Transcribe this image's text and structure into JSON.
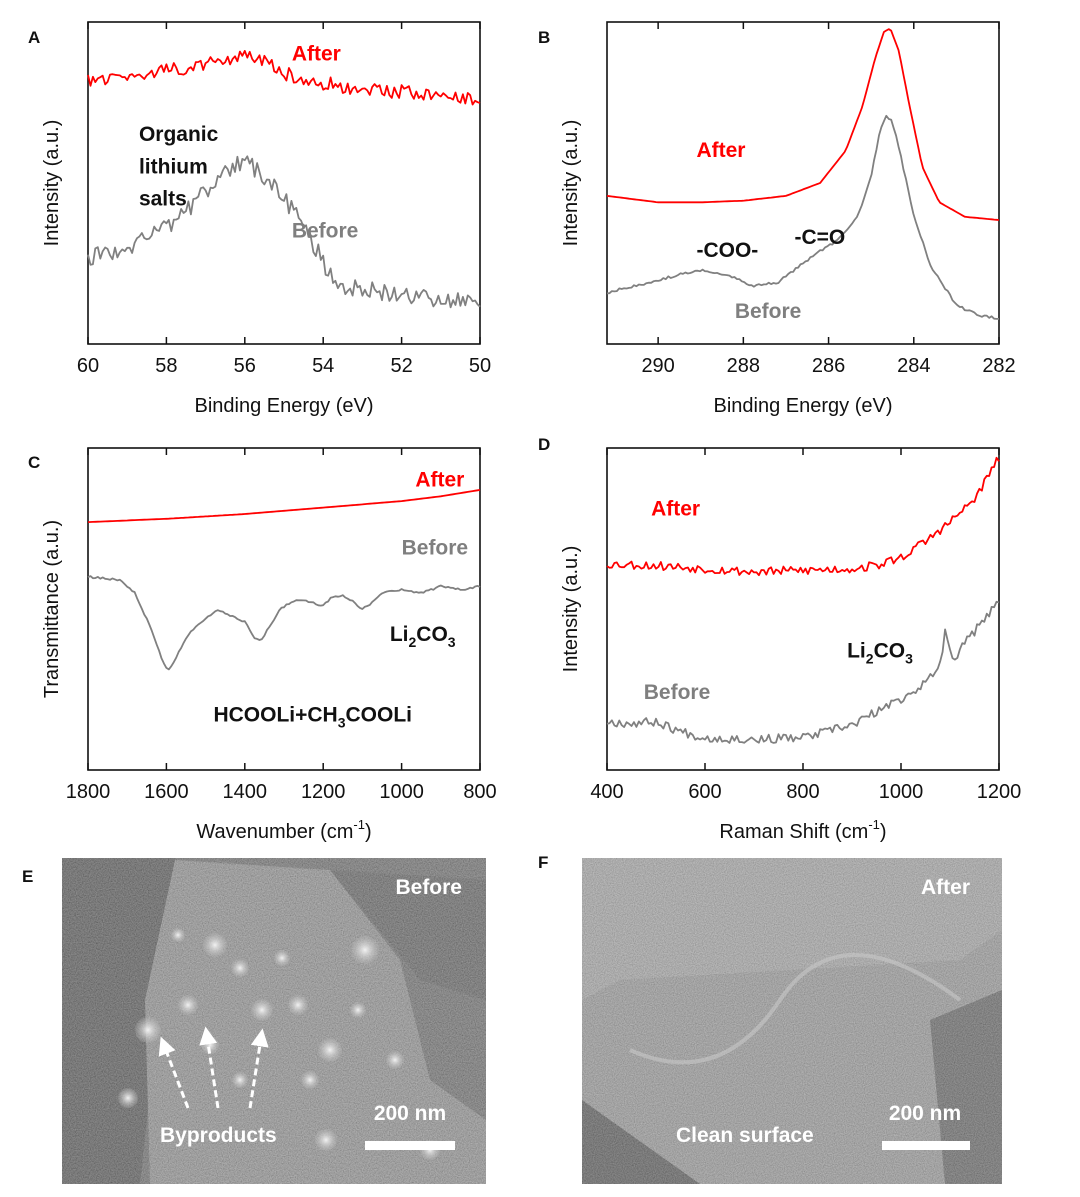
{
  "panels": {
    "A": {
      "label": "A"
    },
    "B": {
      "label": "B"
    },
    "C": {
      "label": "C"
    },
    "D": {
      "label": "D"
    },
    "E": {
      "label": "E"
    },
    "F": {
      "label": "F"
    }
  },
  "colors": {
    "after": "#ff0000",
    "before": "#808080",
    "annotation_dark": "#111111",
    "annotation_gray": "#7f7f7f"
  },
  "chart_data": [
    {
      "panel": "A",
      "type": "line",
      "xlabel": "Binding Energy (eV)",
      "ylabel": "Intensity (a.u.)",
      "xlim": [
        60,
        50
      ],
      "x_reversed": true,
      "xticks": [
        60,
        58,
        56,
        54,
        52,
        50
      ],
      "yticks": false,
      "ylim": [
        0,
        1
      ],
      "annotations": [
        {
          "text": "After",
          "color": "after",
          "x": 54.8,
          "y": 0.88
        },
        {
          "text": "Organic",
          "color": "dark",
          "x": 58.7,
          "y": 0.63
        },
        {
          "text": "lithium",
          "color": "dark",
          "x": 58.7,
          "y": 0.53
        },
        {
          "text": "salts",
          "color": "dark",
          "x": 58.7,
          "y": 0.43
        },
        {
          "text": "Before",
          "color": "gray",
          "x": 54.8,
          "y": 0.33
        }
      ],
      "series": [
        {
          "name": "After",
          "color": "after",
          "noise": 0.022,
          "seed": 11,
          "points": [
            [
              60,
              0.82
            ],
            [
              59,
              0.83
            ],
            [
              58,
              0.85
            ],
            [
              57,
              0.87
            ],
            [
              56.2,
              0.89
            ],
            [
              55.6,
              0.89
            ],
            [
              55.2,
              0.85
            ],
            [
              54.5,
              0.82
            ],
            [
              53,
              0.79
            ],
            [
              51.5,
              0.78
            ],
            [
              50,
              0.76
            ]
          ]
        },
        {
          "name": "Before",
          "color": "before",
          "noise": 0.028,
          "seed": 23,
          "points": [
            [
              60,
              0.27
            ],
            [
              59,
              0.3
            ],
            [
              58,
              0.36
            ],
            [
              57.2,
              0.45
            ],
            [
              56.5,
              0.54
            ],
            [
              56,
              0.57
            ],
            [
              55.6,
              0.53
            ],
            [
              55,
              0.45
            ],
            [
              54.4,
              0.35
            ],
            [
              54,
              0.25
            ],
            [
              53.5,
              0.18
            ],
            [
              52.5,
              0.16
            ],
            [
              51,
              0.14
            ],
            [
              50,
              0.13
            ]
          ]
        }
      ]
    },
    {
      "panel": "B",
      "type": "line",
      "xlabel": "Binding Energy (eV)",
      "ylabel": "Intensity (a.u.)",
      "xlim": [
        291.2,
        282
      ],
      "x_reversed": true,
      "xticks": [
        290,
        288,
        286,
        284,
        282
      ],
      "yticks": false,
      "ylim": [
        0,
        1
      ],
      "annotations": [
        {
          "text": "After",
          "color": "after",
          "x": 289.1,
          "y": 0.58
        },
        {
          "text": "-COO-",
          "color": "dark",
          "x": 289.1,
          "y": 0.27
        },
        {
          "text": "-C=O",
          "color": "dark",
          "x": 286.8,
          "y": 0.31
        },
        {
          "text": "Before",
          "color": "gray",
          "x": 288.2,
          "y": 0.08
        }
      ],
      "series": [
        {
          "name": "After",
          "color": "after",
          "noise": 0,
          "seed": 0,
          "points": [
            [
              291.2,
              0.46
            ],
            [
              290,
              0.44
            ],
            [
              289,
              0.44
            ],
            [
              288,
              0.445
            ],
            [
              287,
              0.46
            ],
            [
              286.2,
              0.5
            ],
            [
              285.6,
              0.6
            ],
            [
              285.2,
              0.74
            ],
            [
              284.9,
              0.89
            ],
            [
              284.7,
              0.97
            ],
            [
              284.55,
              0.98
            ],
            [
              284.35,
              0.91
            ],
            [
              284.1,
              0.74
            ],
            [
              283.8,
              0.55
            ],
            [
              283.4,
              0.44
            ],
            [
              282.8,
              0.395
            ],
            [
              282,
              0.385
            ]
          ]
        },
        {
          "name": "Before",
          "color": "before",
          "noise": 0.004,
          "seed": 31,
          "points": [
            [
              291.2,
              0.16
            ],
            [
              290.2,
              0.19
            ],
            [
              289.4,
              0.22
            ],
            [
              288.9,
              0.23
            ],
            [
              288.3,
              0.21
            ],
            [
              287.8,
              0.18
            ],
            [
              287.2,
              0.19
            ],
            [
              286.8,
              0.23
            ],
            [
              286.3,
              0.28
            ],
            [
              285.8,
              0.32
            ],
            [
              285.3,
              0.4
            ],
            [
              285.0,
              0.52
            ],
            [
              284.8,
              0.66
            ],
            [
              284.65,
              0.71
            ],
            [
              284.5,
              0.69
            ],
            [
              284.3,
              0.58
            ],
            [
              284.0,
              0.4
            ],
            [
              283.6,
              0.24
            ],
            [
              283.0,
              0.12
            ],
            [
              282.5,
              0.09
            ],
            [
              282,
              0.08
            ]
          ]
        }
      ]
    },
    {
      "panel": "C",
      "type": "line",
      "xlabel": "Wavenumber (cm",
      "xlabel_sup": "-1",
      "xlabel_end": ")",
      "ylabel": "Transmittance (a.u.)",
      "xlim": [
        1800,
        800
      ],
      "x_reversed": true,
      "xticks": [
        1800,
        1600,
        1400,
        1200,
        1000,
        800
      ],
      "yticks": false,
      "ylim": [
        0,
        1
      ],
      "annotations": [
        {
          "text": "After",
          "color": "after",
          "x": 965,
          "y": 0.88
        },
        {
          "text": "Before",
          "color": "gray",
          "x": 1000,
          "y": 0.67
        },
        {
          "text": "Li",
          "sub": "2",
          "text2": "CO",
          "sub2": "3",
          "color": "dark",
          "x": 1030,
          "y": 0.4
        },
        {
          "text": "HCOOLi+CH",
          "sub": "3",
          "text2": "COOLi",
          "color": "dark",
          "x": 1480,
          "y": 0.15
        }
      ],
      "series": [
        {
          "name": "After",
          "color": "after",
          "noise": 0,
          "seed": 0,
          "points": [
            [
              1800,
              0.77
            ],
            [
              1600,
              0.78
            ],
            [
              1400,
              0.795
            ],
            [
              1200,
              0.815
            ],
            [
              1000,
              0.835
            ],
            [
              900,
              0.85
            ],
            [
              800,
              0.87
            ]
          ]
        },
        {
          "name": "Before",
          "color": "before",
          "noise": 0.003,
          "seed": 41,
          "points": [
            [
              1800,
              0.6
            ],
            [
              1720,
              0.59
            ],
            [
              1680,
              0.55
            ],
            [
              1640,
              0.44
            ],
            [
              1610,
              0.34
            ],
            [
              1595,
              0.31
            ],
            [
              1575,
              0.35
            ],
            [
              1545,
              0.42
            ],
            [
              1500,
              0.47
            ],
            [
              1470,
              0.5
            ],
            [
              1440,
              0.48
            ],
            [
              1400,
              0.46
            ],
            [
              1375,
              0.41
            ],
            [
              1360,
              0.4
            ],
            [
              1345,
              0.43
            ],
            [
              1310,
              0.5
            ],
            [
              1270,
              0.53
            ],
            [
              1230,
              0.52
            ],
            [
              1200,
              0.51
            ],
            [
              1180,
              0.535
            ],
            [
              1150,
              0.54
            ],
            [
              1120,
              0.52
            ],
            [
              1100,
              0.5
            ],
            [
              1075,
              0.52
            ],
            [
              1050,
              0.55
            ],
            [
              1000,
              0.56
            ],
            [
              950,
              0.55
            ],
            [
              900,
              0.57
            ],
            [
              850,
              0.56
            ],
            [
              800,
              0.57
            ]
          ]
        }
      ]
    },
    {
      "panel": "D",
      "type": "line",
      "xlabel": "Raman Shift (cm",
      "xlabel_sup": "-1",
      "xlabel_end": ")",
      "ylabel": "Intensity (a.u.)",
      "xlim": [
        400,
        1200
      ],
      "x_reversed": false,
      "xticks": [
        400,
        600,
        800,
        1000,
        1200
      ],
      "yticks": false,
      "ylim": [
        0,
        1
      ],
      "annotations": [
        {
          "text": "After",
          "color": "after",
          "x": 490,
          "y": 0.79
        },
        {
          "text": "Li",
          "sub": "2",
          "text2": "CO",
          "sub2": "3",
          "color": "dark",
          "x": 890,
          "y": 0.35
        },
        {
          "text": "Before",
          "color": "gray",
          "x": 475,
          "y": 0.22
        }
      ],
      "series": [
        {
          "name": "After",
          "color": "after",
          "noise": 0.014,
          "seed": 53,
          "points": [
            [
              400,
              0.64
            ],
            [
              500,
              0.635
            ],
            [
              600,
              0.625
            ],
            [
              700,
              0.615
            ],
            [
              800,
              0.62
            ],
            [
              900,
              0.625
            ],
            [
              950,
              0.635
            ],
            [
              1000,
              0.66
            ],
            [
              1050,
              0.71
            ],
            [
              1100,
              0.77
            ],
            [
              1150,
              0.84
            ],
            [
              1200,
              0.97
            ]
          ]
        },
        {
          "name": "Before",
          "color": "before",
          "noise": 0.014,
          "seed": 67,
          "points": [
            [
              400,
              0.15
            ],
            [
              450,
              0.145
            ],
            [
              500,
              0.15
            ],
            [
              550,
              0.12
            ],
            [
              600,
              0.1
            ],
            [
              700,
              0.095
            ],
            [
              800,
              0.1
            ],
            [
              850,
              0.12
            ],
            [
              900,
              0.14
            ],
            [
              950,
              0.18
            ],
            [
              1000,
              0.22
            ],
            [
              1050,
              0.27
            ],
            [
              1075,
              0.31
            ],
            [
              1085,
              0.38
            ],
            [
              1092,
              0.44
            ],
            [
              1100,
              0.38
            ],
            [
              1110,
              0.34
            ],
            [
              1120,
              0.38
            ],
            [
              1150,
              0.43
            ],
            [
              1200,
              0.52
            ]
          ]
        }
      ]
    }
  ],
  "sem": {
    "E": {
      "state": "Before",
      "arrow_label": "Byproducts",
      "scalebar": "200 nm"
    },
    "F": {
      "state": "After",
      "caption": "Clean surface",
      "scalebar": "200 nm"
    }
  }
}
